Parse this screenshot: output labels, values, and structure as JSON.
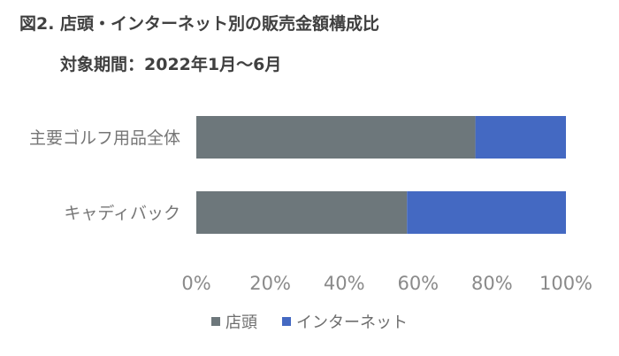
{
  "title": "図2. 店頭・インターネット別の販売金額構成比",
  "subtitle": "対象期間：2022年1月～6月",
  "chart_data": {
    "type": "bar",
    "orientation": "horizontal",
    "stacked": true,
    "categories": [
      "主要ゴルフ用品全体",
      "キャディバック"
    ],
    "series": [
      {
        "name": "店頭",
        "values": [
          75.5,
          57
        ],
        "color": "#6d777b"
      },
      {
        "name": "インターネット",
        "values": [
          24.5,
          43
        ],
        "color": "#4469c2"
      }
    ],
    "xlim": [
      0,
      100
    ],
    "x_ticks": [
      "0%",
      "20%",
      "40%",
      "60%",
      "80%",
      "100%"
    ],
    "grid": false,
    "legend": "bottom"
  }
}
